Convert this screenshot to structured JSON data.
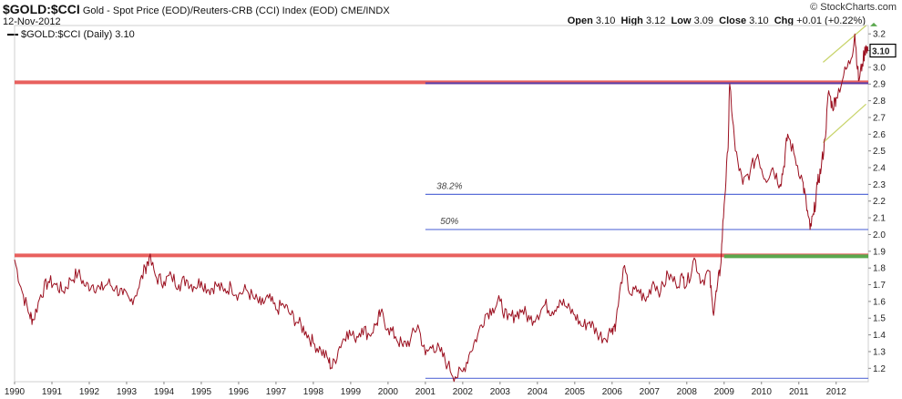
{
  "header": {
    "symbol": "$GOLD:$CCI",
    "description": "Gold - Spot Price (EOD)/Reuters-CRB (CCI) Index (EOD)",
    "exchange": "CME/INDX",
    "date": "12-Nov-2012",
    "legend": "$GOLD:$CCI (Daily) 3.10",
    "quote": {
      "open_label": "Open",
      "open": "3.10",
      "high_label": "High",
      "high": "3.12",
      "low_label": "Low",
      "low": "3.09",
      "close_label": "Close",
      "close": "3.10",
      "chg_label": "Chg",
      "chg": "+0.01 (+0.22%)"
    },
    "brand": "© StockCharts.com"
  },
  "colors": {
    "price_line": "#9b0f1f",
    "resistance": "#e8605e",
    "fib_line": "#5b6fd8",
    "support": "#5aa84e",
    "channel": "#c8d46a",
    "grid_frame": "#cfcfcf",
    "last_price_box": "#000000"
  },
  "chart_data": {
    "type": "line",
    "title": "Gold - Spot Price (EOD)/Reuters-CRB (CCI) Index (EOD)",
    "series_name": "$GOLD:$CCI (Daily)",
    "xlabel": "",
    "ylabel": "",
    "xlim": [
      1990.0,
      2012.86
    ],
    "ylim": [
      1.12,
      3.25
    ],
    "x_ticks": [
      "1990",
      "1991",
      "1992",
      "1993",
      "1994",
      "1995",
      "1996",
      "1997",
      "1998",
      "1999",
      "2000",
      "2001",
      "2002",
      "2003",
      "2004",
      "2005",
      "2006",
      "2007",
      "2008",
      "2009",
      "2010",
      "2011",
      "2012"
    ],
    "y_ticks": [
      "1.2",
      "1.3",
      "1.4",
      "1.5",
      "1.6",
      "1.7",
      "1.8",
      "1.9",
      "2.0",
      "2.1",
      "2.2",
      "2.3",
      "2.4",
      "2.5",
      "2.6",
      "2.7",
      "2.8",
      "2.9",
      "3.0",
      "3.1",
      "3.2"
    ],
    "last_value": "3.10",
    "points": [
      [
        1990.0,
        1.85
      ],
      [
        1990.2,
        1.66
      ],
      [
        1990.4,
        1.52
      ],
      [
        1990.5,
        1.49
      ],
      [
        1990.7,
        1.64
      ],
      [
        1990.9,
        1.72
      ],
      [
        1991.1,
        1.7
      ],
      [
        1991.3,
        1.66
      ],
      [
        1991.5,
        1.73
      ],
      [
        1991.7,
        1.77
      ],
      [
        1991.9,
        1.69
      ],
      [
        1992.1,
        1.7
      ],
      [
        1992.3,
        1.67
      ],
      [
        1992.5,
        1.71
      ],
      [
        1992.7,
        1.68
      ],
      [
        1992.9,
        1.64
      ],
      [
        1993.1,
        1.6
      ],
      [
        1993.3,
        1.67
      ],
      [
        1993.5,
        1.8
      ],
      [
        1993.6,
        1.86
      ],
      [
        1993.8,
        1.74
      ],
      [
        1994.0,
        1.72
      ],
      [
        1994.2,
        1.75
      ],
      [
        1994.4,
        1.7
      ],
      [
        1994.6,
        1.73
      ],
      [
        1994.8,
        1.69
      ],
      [
        1995.0,
        1.72
      ],
      [
        1995.2,
        1.67
      ],
      [
        1995.4,
        1.7
      ],
      [
        1995.6,
        1.66
      ],
      [
        1995.8,
        1.69
      ],
      [
        1996.0,
        1.64
      ],
      [
        1996.2,
        1.67
      ],
      [
        1996.4,
        1.62
      ],
      [
        1996.6,
        1.58
      ],
      [
        1996.8,
        1.62
      ],
      [
        1997.0,
        1.55
      ],
      [
        1997.2,
        1.58
      ],
      [
        1997.4,
        1.52
      ],
      [
        1997.6,
        1.47
      ],
      [
        1997.8,
        1.42
      ],
      [
        1998.0,
        1.35
      ],
      [
        1998.2,
        1.31
      ],
      [
        1998.4,
        1.25
      ],
      [
        1998.5,
        1.2
      ],
      [
        1998.7,
        1.33
      ],
      [
        1998.9,
        1.42
      ],
      [
        1999.1,
        1.38
      ],
      [
        1999.3,
        1.44
      ],
      [
        1999.5,
        1.4
      ],
      [
        1999.7,
        1.47
      ],
      [
        1999.8,
        1.53
      ],
      [
        2000.0,
        1.44
      ],
      [
        2000.2,
        1.39
      ],
      [
        2000.4,
        1.33
      ],
      [
        2000.6,
        1.37
      ],
      [
        2000.8,
        1.46
      ],
      [
        2001.0,
        1.28
      ],
      [
        2001.2,
        1.34
      ],
      [
        2001.4,
        1.3
      ],
      [
        2001.6,
        1.22
      ],
      [
        2001.8,
        1.15
      ],
      [
        2002.0,
        1.18
      ],
      [
        2002.2,
        1.3
      ],
      [
        2002.4,
        1.4
      ],
      [
        2002.6,
        1.52
      ],
      [
        2002.8,
        1.56
      ],
      [
        2003.0,
        1.6
      ],
      [
        2003.2,
        1.49
      ],
      [
        2003.4,
        1.52
      ],
      [
        2003.6,
        1.55
      ],
      [
        2003.8,
        1.49
      ],
      [
        2004.0,
        1.52
      ],
      [
        2004.2,
        1.58
      ],
      [
        2004.4,
        1.54
      ],
      [
        2004.6,
        1.61
      ],
      [
        2004.8,
        1.56
      ],
      [
        2005.0,
        1.52
      ],
      [
        2005.2,
        1.45
      ],
      [
        2005.4,
        1.48
      ],
      [
        2005.6,
        1.41
      ],
      [
        2005.8,
        1.38
      ],
      [
        2006.0,
        1.44
      ],
      [
        2006.1,
        1.47
      ],
      [
        2006.3,
        1.8
      ],
      [
        2006.5,
        1.64
      ],
      [
        2006.7,
        1.67
      ],
      [
        2006.9,
        1.6
      ],
      [
        2007.1,
        1.72
      ],
      [
        2007.3,
        1.66
      ],
      [
        2007.5,
        1.76
      ],
      [
        2007.7,
        1.71
      ],
      [
        2007.9,
        1.74
      ],
      [
        2008.0,
        1.7
      ],
      [
        2008.2,
        1.86
      ],
      [
        2008.4,
        1.72
      ],
      [
        2008.6,
        1.78
      ],
      [
        2008.7,
        1.54
      ],
      [
        2008.8,
        1.66
      ],
      [
        2008.9,
        1.8
      ],
      [
        2009.0,
        2.18
      ],
      [
        2009.1,
        2.5
      ],
      [
        2009.15,
        2.9
      ],
      [
        2009.3,
        2.5
      ],
      [
        2009.5,
        2.3
      ],
      [
        2009.7,
        2.38
      ],
      [
        2009.9,
        2.48
      ],
      [
        2010.1,
        2.33
      ],
      [
        2010.3,
        2.4
      ],
      [
        2010.5,
        2.3
      ],
      [
        2010.6,
        2.41
      ],
      [
        2010.7,
        2.6
      ],
      [
        2010.9,
        2.46
      ],
      [
        2011.1,
        2.32
      ],
      [
        2011.2,
        2.18
      ],
      [
        2011.3,
        2.03
      ],
      [
        2011.4,
        2.12
      ],
      [
        2011.5,
        2.3
      ],
      [
        2011.6,
        2.4
      ],
      [
        2011.7,
        2.57
      ],
      [
        2011.8,
        2.86
      ],
      [
        2011.9,
        2.76
      ],
      [
        2012.0,
        2.82
      ],
      [
        2012.2,
        2.95
      ],
      [
        2012.4,
        3.05
      ],
      [
        2012.5,
        3.2
      ],
      [
        2012.6,
        2.92
      ],
      [
        2012.7,
        3.02
      ],
      [
        2012.8,
        3.13
      ],
      [
        2012.86,
        3.1
      ]
    ],
    "horizontal_lines": [
      {
        "name": "resistance-top",
        "y": 2.91,
        "x_start": 1990.0,
        "color": "#e8605e",
        "width": "thick"
      },
      {
        "name": "resistance-1993",
        "y": 1.875,
        "x_start": 1990.0,
        "color": "#e8605e",
        "width": "thick"
      },
      {
        "name": "purple-top",
        "y": 2.905,
        "x_start": 2001.0,
        "color": "#5b3fa8",
        "width": "medium"
      },
      {
        "name": "fib-382",
        "y": 2.24,
        "x_start": 2001.0,
        "color": "#5b6fd8",
        "width": "thin"
      },
      {
        "name": "fib-50",
        "y": 2.03,
        "x_start": 2001.0,
        "color": "#5b6fd8",
        "width": "thin"
      },
      {
        "name": "bottom-line",
        "y": 1.14,
        "x_start": 2001.0,
        "color": "#5b6fd8",
        "width": "thin"
      },
      {
        "name": "support-green",
        "y": 1.87,
        "x_start": 2009.0,
        "color": "#5aa84e",
        "width": "thick"
      }
    ],
    "annotations": [
      {
        "label": "38.2%",
        "x": 2001.3,
        "y": 2.24
      },
      {
        "label": "50%",
        "x": 2001.4,
        "y": 2.03
      }
    ],
    "channel": [
      {
        "x1": 2011.65,
        "y1": 3.03,
        "x2": 2012.8,
        "y2": 3.25
      },
      {
        "x1": 2011.65,
        "y1": 2.55,
        "x2": 2012.8,
        "y2": 2.78
      }
    ]
  }
}
